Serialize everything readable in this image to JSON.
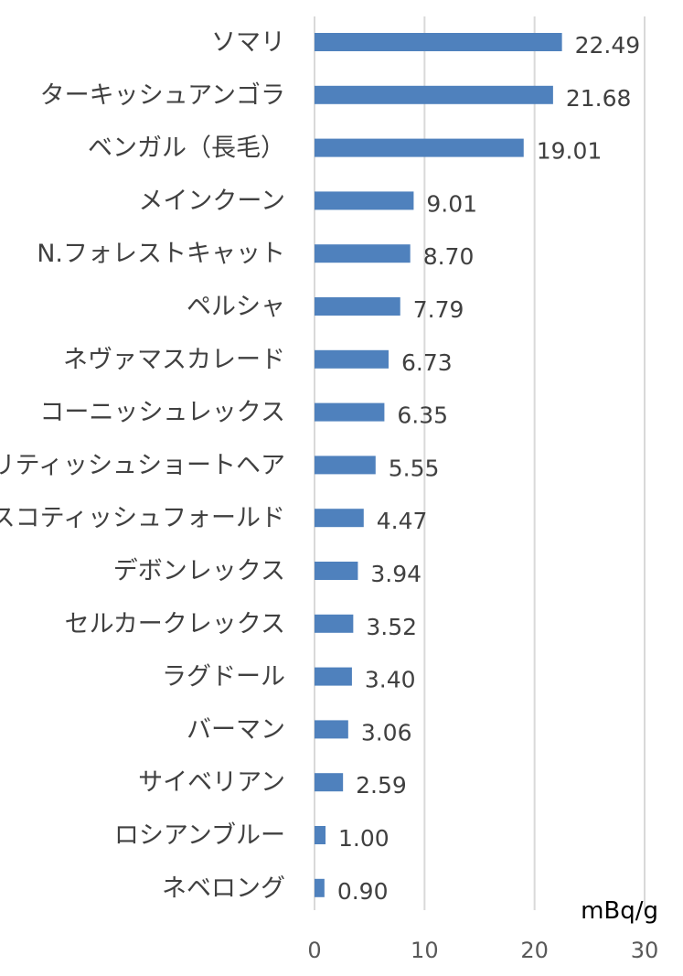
{
  "chart_data": {
    "type": "bar",
    "orientation": "horizontal",
    "categories": [
      "ソマリ",
      "ターキッシュアンゴラ",
      "ベンガル（長毛）",
      "メインクーン",
      "N.フォレストキャット",
      "ペルシャ",
      "ネヴァマスカレード",
      "コーニッシュレックス",
      "ブリティッシュショートヘア",
      "スコティッシュフォールド",
      "デボンレックス",
      "セルカークレックス",
      "ラグドール",
      "バーマン",
      "サイベリアン",
      "ロシアンブルー",
      "ネベロング"
    ],
    "values": [
      22.49,
      21.68,
      19.01,
      9.01,
      8.7,
      7.79,
      6.73,
      6.35,
      5.55,
      4.47,
      3.94,
      3.52,
      3.4,
      3.06,
      2.59,
      1.0,
      0.9
    ],
    "value_labels": [
      "22.49",
      "21.68",
      "19.01",
      "9.01",
      "8.70",
      "7.79",
      "6.73",
      "6.35",
      "5.55",
      "4.47",
      "3.94",
      "3.52",
      "3.40",
      "3.06",
      "2.59",
      "1.00",
      "0.90"
    ],
    "xlim": [
      0,
      30
    ],
    "xticks": [
      0,
      10,
      20,
      30
    ],
    "xtick_labels": [
      "0",
      "10",
      "20",
      "30"
    ],
    "unit": "mBq/g",
    "grid": true,
    "legend": "none",
    "bar_color": "#4f81bd"
  }
}
